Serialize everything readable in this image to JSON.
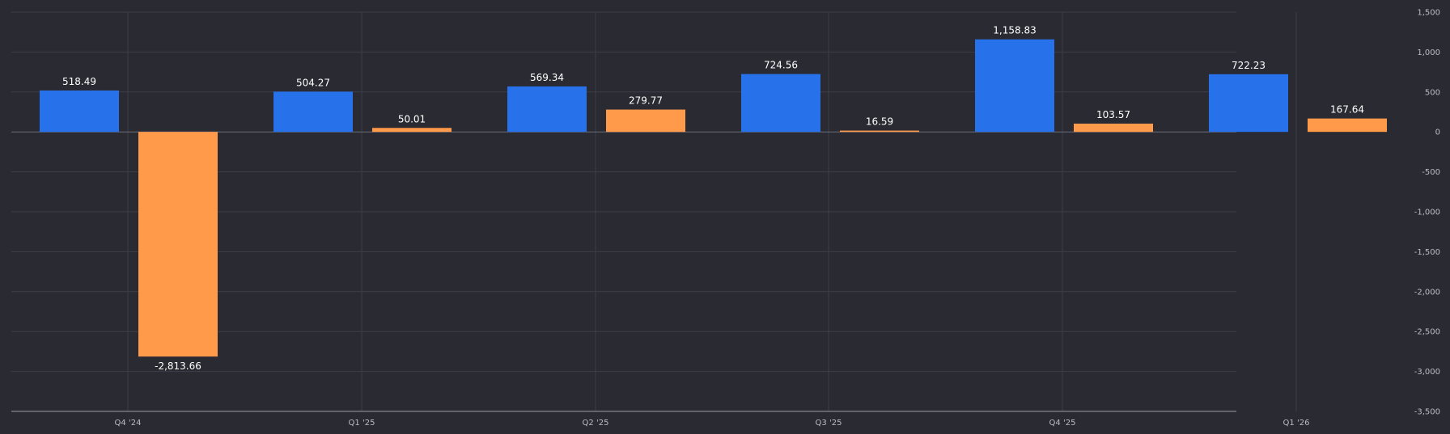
{
  "chart_data": {
    "type": "bar",
    "categories": [
      "Q4 '24",
      "Q1 '25",
      "Q2 '25",
      "Q3 '25",
      "Q4 '25",
      "Q1 '26"
    ],
    "series": [
      {
        "color": "#2771ea",
        "values": [
          518.49,
          504.27,
          569.34,
          724.56,
          1158.83,
          722.23
        ],
        "labels": [
          "518.49",
          "504.27",
          "569.34",
          "724.56",
          "1,158.83",
          "722.23"
        ]
      },
      {
        "color": "#ff9a4a",
        "values": [
          -2813.66,
          50.01,
          279.77,
          16.59,
          103.57,
          167.64
        ],
        "labels": [
          "-2,813.66",
          "50.01",
          "279.77",
          "16.59",
          "103.57",
          "167.64"
        ]
      }
    ],
    "ylim": [
      -3500,
      1500
    ],
    "yticks": [
      1500,
      1000,
      500,
      0,
      -500,
      -1000,
      -1500,
      -2000,
      -2500,
      -3000,
      -3500
    ],
    "ytick_labels": [
      "1,500",
      "1,000",
      "500",
      "0",
      "-500",
      "-1,000",
      "-1,500",
      "-2,000",
      "-2,500",
      "-3,000",
      "-3,500"
    ],
    "y_axis_position": "right",
    "grid": true,
    "legend": "none",
    "title": "",
    "xlabel": "",
    "ylabel": ""
  },
  "colors": {
    "background": "#2a2a33",
    "grid": "#3d3e48",
    "text": "#ffffff",
    "tick_text": "#b9bcc6"
  }
}
